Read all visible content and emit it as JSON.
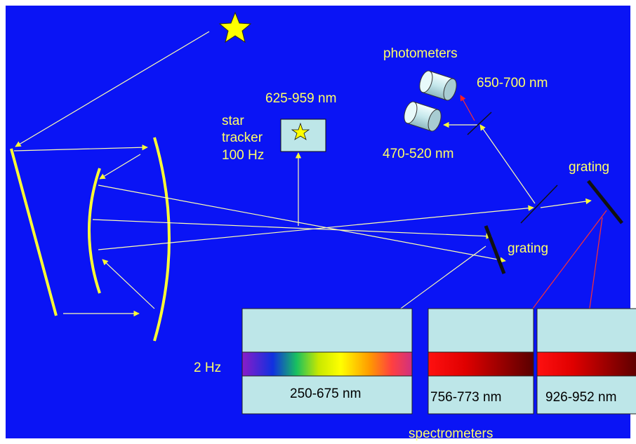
{
  "colors": {
    "background": "#0a14f5",
    "mirror": "#ffff33",
    "beam": "#ffffb0",
    "red_beam": "#ff3030",
    "panel": "#bde6e8",
    "grating": "#111111"
  },
  "labels": {
    "photometers": "photometers",
    "photometer_long": "650-700 nm",
    "photometer_short": "470-520 nm",
    "tracker_band": "625-959 nm",
    "tracker_line1": "star",
    "tracker_line2": "tracker",
    "tracker_line3": "100 Hz",
    "grating_upper": "grating",
    "grating_lower": "grating",
    "rate": "2 Hz",
    "spec_uv_vis": "250-675 nm",
    "spec_o2": "756-773 nm",
    "spec_nir": "926-952 nm",
    "spectrometers": "spectrometers"
  }
}
